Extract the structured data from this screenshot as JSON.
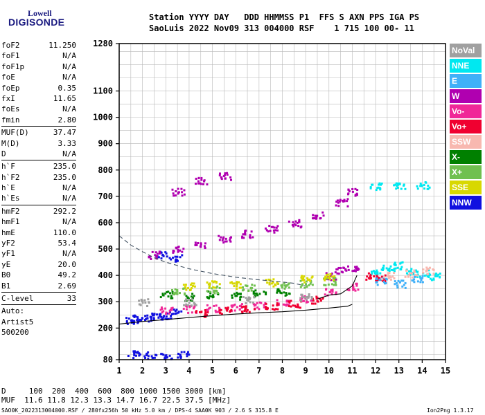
{
  "logo": {
    "line1": "Lowell",
    "line2": "DIGISONDE"
  },
  "header": {
    "line1": "Station YYYY DAY   DDD HHMMSS P1  FFS S AXN PPS IGA PS",
    "line2": "SaoLuis 2022 Nov09 313 004000 RSF    1 715 100 00- 11"
  },
  "params": [
    {
      "label": "foF2",
      "value": "11.250"
    },
    {
      "label": "foF1",
      "value": "N/A"
    },
    {
      "label": "foF1p",
      "value": "N/A"
    },
    {
      "label": "foE",
      "value": "N/A"
    },
    {
      "label": "foEp",
      "value": "0.35"
    },
    {
      "label": "fxI",
      "value": "11.65"
    },
    {
      "label": "foEs",
      "value": "N/A"
    },
    {
      "label": "fmin",
      "value": "2.80"
    },
    {
      "label": "MUF(D)",
      "value": "37.47",
      "sep": true
    },
    {
      "label": "M(D)",
      "value": "3.33"
    },
    {
      "label": "D",
      "value": "N/A"
    },
    {
      "label": "h`F",
      "value": "235.0",
      "sep": true
    },
    {
      "label": "h`F2",
      "value": "235.0"
    },
    {
      "label": "h`E",
      "value": "N/A"
    },
    {
      "label": "h`Es",
      "value": "N/A"
    },
    {
      "label": "hmF2",
      "value": "292.2",
      "sep": true
    },
    {
      "label": "hmF1",
      "value": "N/A"
    },
    {
      "label": "hmE",
      "value": "110.0"
    },
    {
      "label": "yF2",
      "value": "53.4"
    },
    {
      "label": "yF1",
      "value": "N/A"
    },
    {
      "label": "yE",
      "value": "20.0"
    },
    {
      "label": "B0",
      "value": "49.2"
    },
    {
      "label": "B1",
      "value": "2.69"
    },
    {
      "label": "C-level",
      "value": "33",
      "sep": true
    },
    {
      "label": "Auto:",
      "value": "",
      "sep": true
    },
    {
      "label": "Artist5",
      "value": ""
    },
    {
      "label": "500200",
      "value": ""
    }
  ],
  "legend": [
    {
      "label": "NoVal",
      "color": "#a0a0a0"
    },
    {
      "label": "NNE",
      "color": "#00e8f0"
    },
    {
      "label": "E",
      "color": "#40b0f8"
    },
    {
      "label": "W",
      "color": "#b000b0"
    },
    {
      "label": "Vo-",
      "color": "#f02898"
    },
    {
      "label": "Vo+",
      "color": "#f00030"
    },
    {
      "label": "SSW",
      "color": "#f8b8b0"
    },
    {
      "label": "X-",
      "color": "#008000"
    },
    {
      "label": "X+",
      "color": "#70c050"
    },
    {
      "label": "SSE",
      "color": "#d8d800"
    },
    {
      "label": "NNW",
      "color": "#1010e0"
    }
  ],
  "bottom": {
    "distance": "D     100  200  400  600  800 1000 1500 3000 [km]",
    "muf": "MUF  11.6 11.8 12.3 13.3 14.7 16.7 22.5 37.5 [MHz]",
    "footer_left": "SAO0K_2022313004000.RSF / 280fx256h 50 kHz 5.0 km / DPS-4 SAA0K 903 / 2.6 S 315.8 E",
    "footer_right": "Ion2Png 1.3.17"
  },
  "chart_data": {
    "type": "scatter",
    "xlim": [
      1,
      15
    ],
    "ylim": [
      80,
      1280
    ],
    "x_ticks": [
      "1",
      "2",
      "3",
      "4",
      "5",
      "6",
      "7",
      "8",
      "9",
      "10",
      "11",
      "12",
      "13",
      "14",
      "15"
    ],
    "y_ticks": [
      "80",
      "200",
      "300",
      "400",
      "500",
      "600",
      "700",
      "800",
      "900",
      "1000",
      "1100",
      "1280"
    ],
    "grid": true,
    "series": [
      {
        "name": "NNW",
        "color": "#1010e0",
        "points": [
          [
            1.5,
            232
          ],
          [
            1.8,
            238
          ],
          [
            2.2,
            242
          ],
          [
            2.6,
            245
          ],
          [
            3.0,
            250
          ],
          [
            3.4,
            262
          ],
          [
            1.6,
            102
          ],
          [
            2.3,
            100
          ],
          [
            3.0,
            99
          ],
          [
            3.7,
            100
          ],
          [
            2.8,
            480
          ],
          [
            3.4,
            470
          ]
        ]
      },
      {
        "name": "W",
        "color": "#b000b0",
        "points": [
          [
            2.5,
            480
          ],
          [
            3.5,
            500
          ],
          [
            4.5,
            520
          ],
          [
            5.5,
            540
          ],
          [
            6.5,
            560
          ],
          [
            7.5,
            580
          ],
          [
            8.5,
            600
          ],
          [
            9.5,
            630
          ],
          [
            10.5,
            680
          ],
          [
            11.0,
            720
          ],
          [
            10.0,
            400
          ],
          [
            10.5,
            420
          ],
          [
            11.0,
            430
          ],
          [
            3.5,
            720
          ],
          [
            4.5,
            760
          ],
          [
            5.5,
            780
          ]
        ]
      },
      {
        "name": "Vo-",
        "color": "#f02898",
        "points": [
          [
            3.0,
            270
          ],
          [
            4.0,
            275
          ],
          [
            5.0,
            278
          ],
          [
            6.0,
            282
          ],
          [
            7.0,
            290
          ],
          [
            8.0,
            300
          ],
          [
            9.0,
            315
          ],
          [
            10.0,
            340
          ],
          [
            11.0,
            360
          ]
        ]
      },
      {
        "name": "Vo+",
        "color": "#f00030",
        "points": [
          [
            4.5,
            260
          ],
          [
            5.5,
            268
          ],
          [
            6.5,
            275
          ],
          [
            7.5,
            285
          ],
          [
            8.5,
            295
          ],
          [
            9.5,
            310
          ],
          [
            11.8,
            400
          ],
          [
            12.2,
            390
          ]
        ]
      },
      {
        "name": "NNE",
        "color": "#00e8f0",
        "points": [
          [
            12.0,
            420
          ],
          [
            12.5,
            430
          ],
          [
            13.0,
            440
          ],
          [
            13.5,
            420
          ],
          [
            14.0,
            410
          ],
          [
            14.5,
            400
          ],
          [
            12.0,
            740
          ],
          [
            13.0,
            745
          ],
          [
            14.0,
            745
          ]
        ]
      },
      {
        "name": "E",
        "color": "#40b0f8",
        "points": [
          [
            12.2,
            380
          ],
          [
            13.0,
            370
          ],
          [
            13.8,
            390
          ]
        ]
      },
      {
        "name": "X-",
        "color": "#008000",
        "points": [
          [
            3.0,
            330
          ],
          [
            4.0,
            320
          ],
          [
            5.0,
            330
          ],
          [
            6.0,
            325
          ],
          [
            7.0,
            335
          ],
          [
            8.0,
            340
          ]
        ]
      },
      {
        "name": "X+",
        "color": "#70c050",
        "points": [
          [
            3.5,
            345
          ],
          [
            5.0,
            350
          ],
          [
            6.5,
            355
          ],
          [
            8.0,
            365
          ],
          [
            9.0,
            370
          ],
          [
            10.0,
            380
          ]
        ]
      },
      {
        "name": "SSE",
        "color": "#d8d800",
        "points": [
          [
            4.0,
            360
          ],
          [
            5.0,
            370
          ],
          [
            6.0,
            365
          ],
          [
            7.5,
            375
          ],
          [
            9.0,
            390
          ],
          [
            10.0,
            395
          ]
        ]
      },
      {
        "name": "SSW",
        "color": "#f8b8b0",
        "points": [
          [
            12.5,
            400
          ],
          [
            13.5,
            410
          ],
          [
            14.2,
            420
          ]
        ]
      },
      {
        "name": "NoVal",
        "color": "#a0a0a0",
        "points": [
          [
            2.0,
            300
          ],
          [
            4.0,
            300
          ],
          [
            6.5,
            310
          ],
          [
            9.0,
            320
          ]
        ]
      }
    ],
    "curves": [
      {
        "name": "true-height",
        "style": "solid",
        "x": [
          1,
          2,
          3,
          4,
          5,
          6,
          7,
          8,
          9,
          10,
          10.8,
          11.0
        ],
        "y": [
          215,
          225,
          232,
          240,
          247,
          253,
          258,
          262,
          268,
          276,
          283,
          290
        ]
      },
      {
        "name": "virtual-height",
        "style": "dash",
        "x": [
          1,
          1.5,
          2,
          2.5,
          3,
          4,
          5,
          6,
          7,
          8,
          8.5,
          9
        ],
        "y": [
          550,
          515,
          490,
          467,
          450,
          425,
          407,
          393,
          383,
          375,
          370,
          360
        ]
      },
      {
        "name": "profile",
        "style": "solid",
        "x": [
          9.5,
          10.0,
          10.5,
          11.0,
          11.2
        ],
        "y": [
          310,
          325,
          330,
          360,
          400
        ]
      }
    ]
  }
}
